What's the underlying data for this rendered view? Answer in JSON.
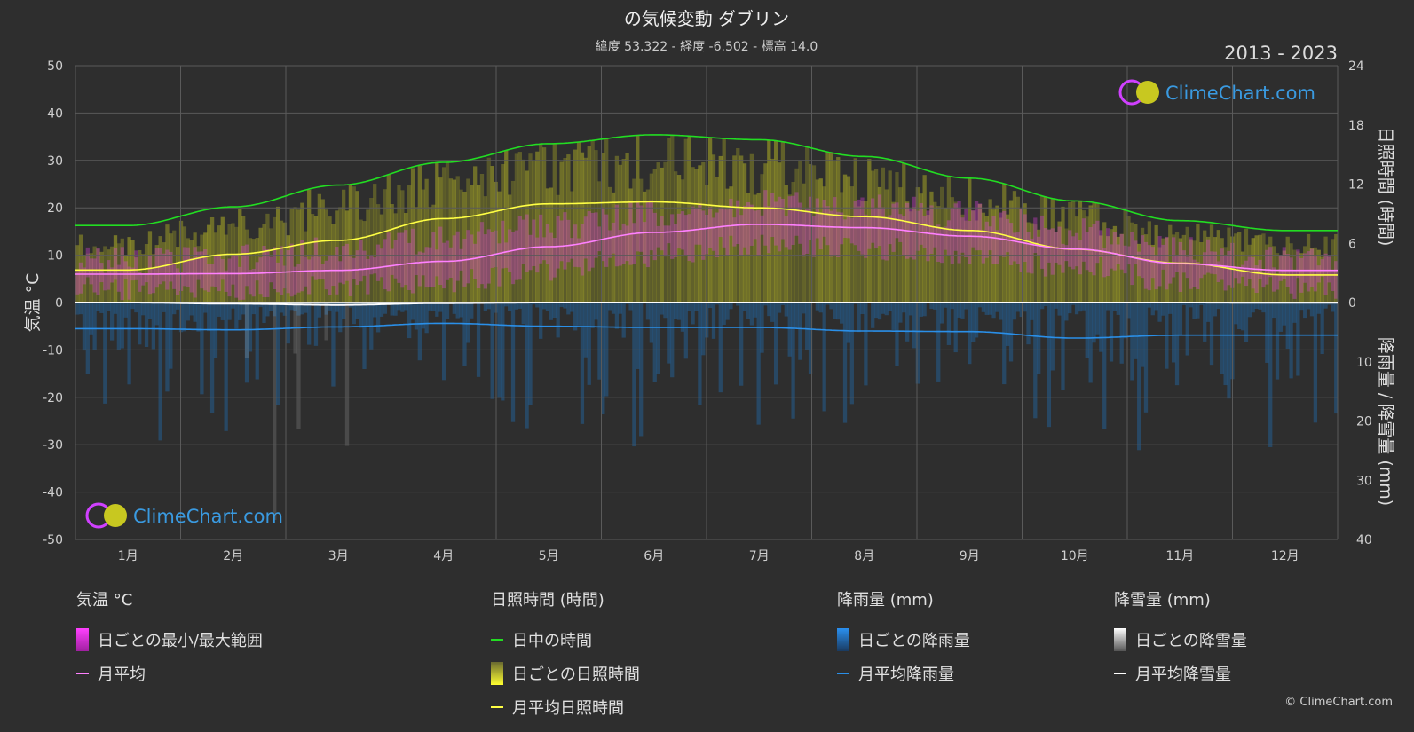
{
  "header": {
    "title": "の気候変動 ダブリン",
    "subtitle": "緯度 53.322 - 経度 -6.502 - 標高 14.0",
    "period": "2013 - 2023"
  },
  "watermark": {
    "text": "ClimeChart.com"
  },
  "copyright": "© ClimeChart.com",
  "colors": {
    "background": "#2e2e2e",
    "grid": "#5a5a5a",
    "temp_range": "#e040e0",
    "temp_avg": "#ff80ff",
    "daylight": "#22dd22",
    "sunshine": "#dddd22",
    "sunshine_avg": "#ffff44",
    "rain": "#1e78c8",
    "rain_avg": "#2a8fe8",
    "snow": "#cccccc",
    "snow_avg": "#ffffff"
  },
  "legend": {
    "temp": {
      "title": "気温 °C",
      "range": "日ごとの最小/最大範囲",
      "avg": "月平均"
    },
    "sun": {
      "title": "日照時間 (時間)",
      "daylight": "日中の時間",
      "daily": "日ごとの日照時間",
      "avg": "月平均日照時間"
    },
    "rain": {
      "title": "降雨量 (mm)",
      "daily": "日ごとの降雨量",
      "avg": "月平均降雨量"
    },
    "snow": {
      "title": "降雪量 (mm)",
      "daily": "日ごとの降雪量",
      "avg": "月平均降雪量"
    }
  },
  "chart_data": {
    "type": "line",
    "x": [
      "1月",
      "2月",
      "3月",
      "4月",
      "5月",
      "6月",
      "7月",
      "8月",
      "9月",
      "10月",
      "11月",
      "12月"
    ],
    "axes": {
      "left": {
        "label": "気温 °C",
        "ylim": [
          -50,
          50
        ],
        "ticks": [
          50,
          40,
          30,
          20,
          10,
          0,
          -10,
          -20,
          -30,
          -40,
          -50
        ]
      },
      "right_top": {
        "label": "日照時間 (時間)",
        "ylim": [
          0,
          24
        ],
        "ticks": [
          24,
          18,
          12,
          6,
          0
        ]
      },
      "right_bottom": {
        "label": "降雨量 / 降雪量 (mm)",
        "ylim": [
          0,
          40
        ],
        "ticks": [
          0,
          10,
          20,
          30,
          40
        ]
      }
    },
    "grid": true,
    "series": [
      {
        "key": "temp_max",
        "values": [
          9,
          9.5,
          11,
          13.5,
          16,
          19,
          21,
          20.5,
          18.5,
          15,
          11,
          9
        ]
      },
      {
        "key": "temp_min",
        "values": [
          3,
          3,
          3.5,
          4.5,
          7,
          10,
          12,
          11.5,
          10,
          7.5,
          4.5,
          3
        ]
      },
      {
        "name": "月平均",
        "key": "temp_avg",
        "values": [
          6,
          6.1,
          6.8,
          8.7,
          11.8,
          14.8,
          16.5,
          15.8,
          14,
          11.3,
          8.2,
          6.8
        ]
      },
      {
        "name": "日中の時間",
        "key": "daylight",
        "values": [
          7.8,
          9.7,
          11.9,
          14.2,
          16.1,
          17.0,
          16.5,
          14.8,
          12.6,
          10.3,
          8.3,
          7.3
        ]
      },
      {
        "name": "月平均日照時間",
        "key": "sunshine_avg",
        "values": [
          3.3,
          4.9,
          6.3,
          8.5,
          10.0,
          10.2,
          9.6,
          8.7,
          7.3,
          5.4,
          4.0,
          2.8
        ]
      },
      {
        "key": "sunshine_daily_max",
        "values": [
          6,
          8,
          10,
          12,
          14,
          15,
          14.5,
          13,
          11,
          9,
          7,
          6
        ]
      },
      {
        "name": "月平均降雨量",
        "key": "rain_avg",
        "values": [
          4.4,
          4.6,
          4.1,
          3.5,
          4.0,
          4.2,
          4.2,
          4.8,
          4.9,
          6.0,
          5.5,
          5.5
        ]
      },
      {
        "name": "月平均降雪量",
        "key": "snow_avg",
        "values": [
          0.0,
          0.2,
          0.4,
          0.1,
          0.0,
          0.0,
          0.0,
          0.0,
          0.0,
          0.0,
          0.0,
          0.05
        ]
      }
    ]
  }
}
